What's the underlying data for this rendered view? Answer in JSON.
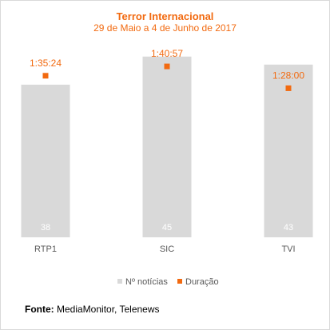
{
  "chart_data": {
    "type": "bar",
    "title": "Terror Internacional",
    "subtitle": "29 de Maio a 4 de Junho de 2017",
    "categories": [
      "RTP1",
      "SIC",
      "TVI"
    ],
    "series": [
      {
        "name": "Nº notícias",
        "type": "bar",
        "color": "#d9d9d9",
        "values": [
          38,
          45,
          43
        ],
        "labels": [
          "38",
          "45",
          "43"
        ]
      },
      {
        "name": "Duração",
        "type": "marker",
        "color": "#f26a10",
        "values_seconds": [
          5724,
          6057,
          5280
        ],
        "labels": [
          "1:35:24",
          "1:40:57",
          "1:28:00"
        ]
      }
    ],
    "legend_position": "bottom",
    "grid": false
  },
  "footer": {
    "source_label": "Fonte:",
    "source_text": "MediaMonitor, Telenews"
  }
}
